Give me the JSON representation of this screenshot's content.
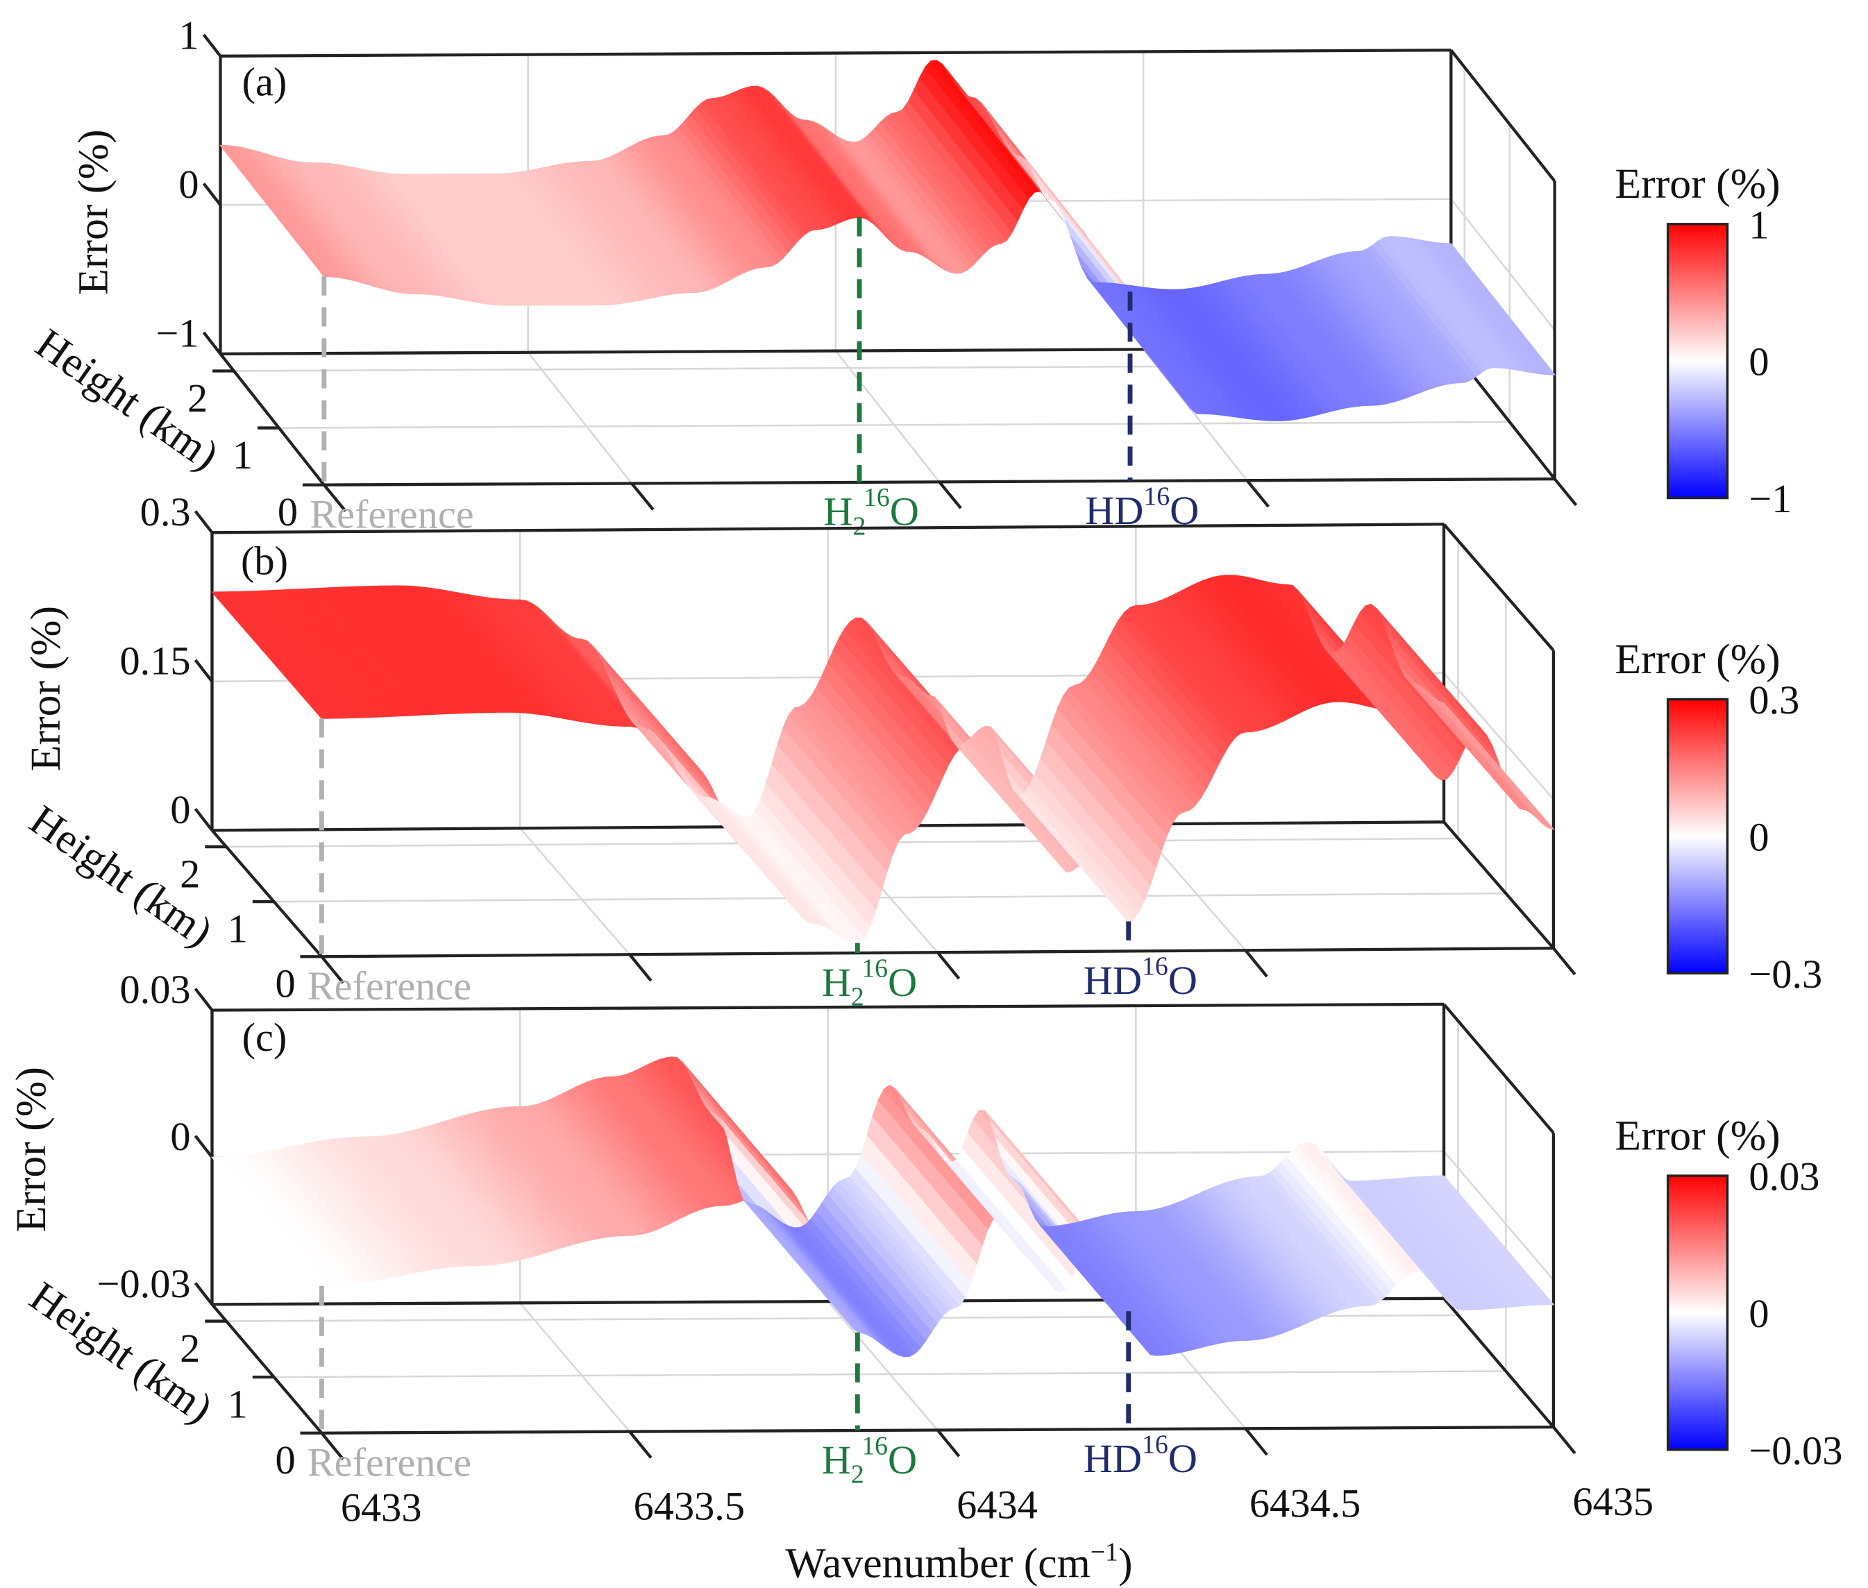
{
  "figure": {
    "xlabel_parts": [
      "Wavenumber (cm",
      "−1",
      ")"
    ],
    "xticks": [
      "6433",
      "6433.5",
      "6434",
      "6434.5",
      "6435"
    ],
    "xtick_values": [
      6433,
      6433.5,
      6434,
      6434.5,
      6435
    ]
  },
  "colors": {
    "reference": "#b0b0b0",
    "h2o": "#1b7a3e",
    "hdo": "#1f2c6e",
    "positive": "#ff0000",
    "negative": "#0000ff"
  },
  "chart_data": [
    {
      "type": "surface",
      "panel_label": "(a)",
      "zlabel": "Error (%)",
      "ylabel": "Height (km)",
      "zlim": [
        -1,
        1
      ],
      "zticks": [
        {
          "label": "1",
          "value": 1
        },
        {
          "label": "0",
          "value": 0
        },
        {
          "label": "−1",
          "value": -1
        }
      ],
      "yticks": [
        {
          "label": "0",
          "value": 0
        },
        {
          "label": "1",
          "value": 1
        },
        {
          "label": "2",
          "value": 2
        }
      ],
      "colorbar": {
        "title": "Error (%)",
        "ticks": [
          "1",
          "0",
          "−1"
        ],
        "clim": [
          -1,
          1
        ]
      },
      "markers": [
        {
          "name": "Reference",
          "parts": [
            "Reference",
            "",
            "",
            ""
          ],
          "wavenumber": 6433.0,
          "color": "#b0b0b0"
        },
        {
          "name": "H2 16O",
          "parts": [
            "H",
            "2",
            "16",
            "O"
          ],
          "wavenumber": 6433.87,
          "color": "#1b7a3e"
        },
        {
          "name": "HD 16O",
          "parts": [
            "HD",
            "",
            "16",
            "O"
          ],
          "wavenumber": 6434.31,
          "color": "#1f2c6e"
        }
      ],
      "x": [
        6433.0,
        6433.15,
        6433.3,
        6433.45,
        6433.6,
        6433.72,
        6433.8,
        6433.87,
        6433.95,
        6434.03,
        6434.1,
        6434.16,
        6434.22,
        6434.3,
        6434.35,
        6434.42,
        6434.55,
        6434.7,
        6434.85,
        6434.9,
        6435.0
      ],
      "values": [
        0.4,
        0.28,
        0.2,
        0.2,
        0.28,
        0.45,
        0.7,
        0.78,
        0.55,
        0.4,
        0.6,
        0.95,
        0.7,
        0.3,
        0.0,
        -0.55,
        -0.6,
        -0.5,
        -0.35,
        -0.25,
        -0.3
      ]
    },
    {
      "type": "surface",
      "panel_label": "(b)",
      "zlabel": "Error (%)",
      "ylabel": "Height (km)",
      "zlim": [
        0,
        0.3
      ],
      "zticks": [
        {
          "label": "0.3",
          "value": 0.3
        },
        {
          "label": "0.15",
          "value": 0.15
        },
        {
          "label": "0",
          "value": 0
        }
      ],
      "yticks": [
        {
          "label": "0",
          "value": 0
        },
        {
          "label": "1",
          "value": 1
        },
        {
          "label": "2",
          "value": 2
        }
      ],
      "colorbar": {
        "title": "Error (%)",
        "ticks": [
          "0.3",
          "0",
          "−0.3"
        ],
        "clim": [
          -0.3,
          0.3
        ]
      },
      "markers": [
        {
          "name": "Reference",
          "parts": [
            "Reference",
            "",
            "",
            ""
          ],
          "wavenumber": 6433.0,
          "color": "#b0b0b0"
        },
        {
          "name": "H2 16O",
          "parts": [
            "H",
            "2",
            "16",
            "O"
          ],
          "wavenumber": 6433.87,
          "color": "#1b7a3e"
        },
        {
          "name": "HD 16O",
          "parts": [
            "HD",
            "",
            "16",
            "O"
          ],
          "wavenumber": 6434.31,
          "color": "#1f2c6e"
        }
      ],
      "x": [
        6433.0,
        6433.3,
        6433.5,
        6433.6,
        6433.7,
        6433.8,
        6433.87,
        6433.95,
        6434.05,
        6434.12,
        6434.17,
        6434.21,
        6434.26,
        6434.31,
        6434.4,
        6434.5,
        6434.65,
        6434.75,
        6434.82,
        6434.88,
        6434.95,
        6435.0
      ],
      "values": [
        0.24,
        0.245,
        0.23,
        0.19,
        0.1,
        0.03,
        0.01,
        0.12,
        0.21,
        0.15,
        0.13,
        0.08,
        0.1,
        0.03,
        0.14,
        0.22,
        0.25,
        0.24,
        0.17,
        0.22,
        0.14,
        0.12
      ]
    },
    {
      "type": "surface",
      "panel_label": "(c)",
      "zlabel": "Error (%)",
      "ylabel": "Height (km)",
      "zlim": [
        -0.03,
        0.03
      ],
      "zticks": [
        {
          "label": "0.03",
          "value": 0.03
        },
        {
          "label": "0",
          "value": 0
        },
        {
          "label": "−0.03",
          "value": -0.03
        }
      ],
      "yticks": [
        {
          "label": "0",
          "value": 0
        },
        {
          "label": "1",
          "value": 1
        },
        {
          "label": "2",
          "value": 2
        }
      ],
      "colorbar": {
        "title": "Error (%)",
        "ticks": [
          "0.03",
          "0",
          "−0.03"
        ],
        "clim": [
          -0.03,
          0.03
        ]
      },
      "markers": [
        {
          "name": "Reference",
          "parts": [
            "Reference",
            "",
            "",
            ""
          ],
          "wavenumber": 6433.0,
          "color": "#b0b0b0"
        },
        {
          "name": "H2 16O",
          "parts": [
            "H",
            "2",
            "16",
            "O"
          ],
          "wavenumber": 6433.87,
          "color": "#1b7a3e"
        },
        {
          "name": "HD 16O",
          "parts": [
            "HD",
            "",
            "16",
            "O"
          ],
          "wavenumber": 6434.31,
          "color": "#1f2c6e"
        }
      ],
      "x": [
        6433.0,
        6433.25,
        6433.5,
        6433.65,
        6433.75,
        6433.82,
        6433.87,
        6433.95,
        6434.03,
        6434.1,
        6434.15,
        6434.2,
        6434.25,
        6434.3,
        6434.35,
        6434.5,
        6434.7,
        6434.78,
        6434.85,
        6435.0
      ],
      "values": [
        0.0,
        0.004,
        0.01,
        0.016,
        0.02,
        0.008,
        -0.01,
        -0.015,
        -0.005,
        0.014,
        0.005,
        -0.002,
        0.009,
        -0.005,
        -0.015,
        -0.012,
        -0.005,
        0.002,
        -0.006,
        -0.005
      ]
    }
  ]
}
